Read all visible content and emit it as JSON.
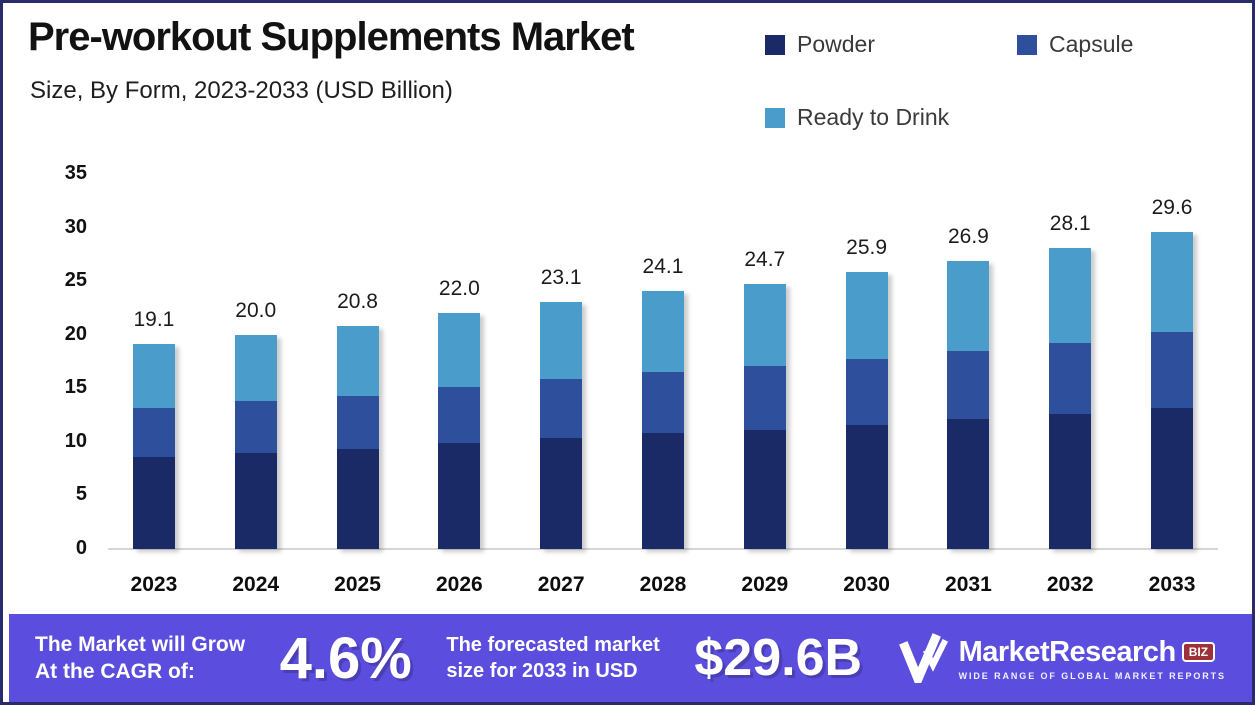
{
  "header": {
    "title": "Pre-workout Supplements Market",
    "subtitle": "Size, By Form, 2023-2033 (USD Billion)"
  },
  "legend": [
    {
      "label": "Powder",
      "color": "#1a2a66"
    },
    {
      "label": "Capsule",
      "color": "#2e4f9c"
    },
    {
      "label": "Ready to Drink",
      "color": "#4a9dca"
    }
  ],
  "chart_data": {
    "type": "bar",
    "stacked": true,
    "title": "Pre-workout Supplements Market Size, By Form, 2023-2033 (USD Billion)",
    "xlabel": "",
    "ylabel": "",
    "categories": [
      "2023",
      "2024",
      "2025",
      "2026",
      "2027",
      "2028",
      "2029",
      "2030",
      "2031",
      "2032",
      "2033"
    ],
    "series": [
      {
        "name": "Powder",
        "color": "#1a2a66",
        "values": [
          8.6,
          9.0,
          9.3,
          9.9,
          10.4,
          10.8,
          11.1,
          11.6,
          12.1,
          12.6,
          13.2
        ]
      },
      {
        "name": "Capsule",
        "color": "#2e4f9c",
        "values": [
          4.6,
          4.8,
          5.0,
          5.2,
          5.5,
          5.7,
          6.0,
          6.1,
          6.4,
          6.6,
          7.1
        ]
      },
      {
        "name": "Ready to Drink",
        "color": "#4a9dca",
        "values": [
          5.9,
          6.2,
          6.5,
          6.9,
          7.2,
          7.6,
          7.6,
          8.2,
          8.4,
          8.9,
          9.3
        ]
      }
    ],
    "totals_labels": [
      "19.1",
      "20.0",
      "20.8",
      "22.0",
      "23.1",
      "24.1",
      "24.7",
      "25.9",
      "26.9",
      "28.1",
      "29.6"
    ],
    "y_ticks": [
      0,
      5,
      10,
      15,
      20,
      25,
      30,
      35
    ],
    "ylim": [
      0,
      35
    ],
    "grid": false,
    "legend_position": "top-right"
  },
  "banner": {
    "bg_color": "#5b4ddd",
    "cagr_label_line1": "The Market will Grow",
    "cagr_label_line2": "At the CAGR of:",
    "cagr_value": "4.6%",
    "forecast_label_line1": "The forecasted market",
    "forecast_label_line2": "size for 2033 in USD",
    "forecast_value": "$29.6B",
    "logo": {
      "name": "MarketResearch",
      "suffix": "BIZ",
      "tagline": "WIDE RANGE OF GLOBAL MARKET REPORTS"
    }
  },
  "frame": {
    "border_color": "#282c6b"
  }
}
